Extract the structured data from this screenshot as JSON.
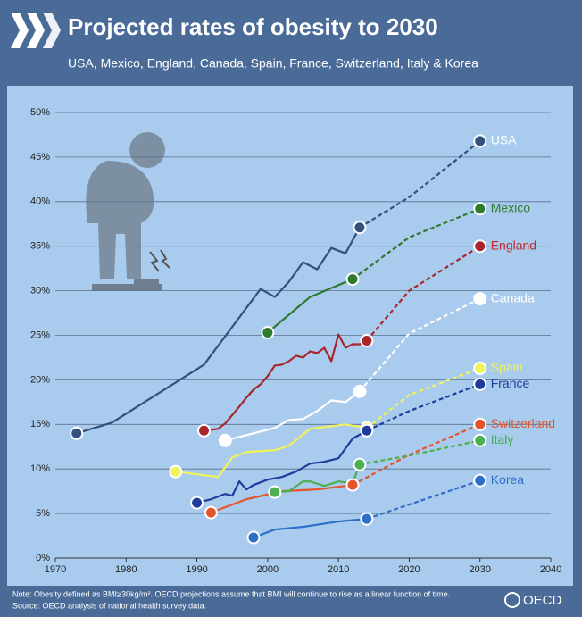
{
  "chart_data": {
    "type": "line",
    "title": "Projected rates of obesity to 2030",
    "subtitle": "USA, Mexico, England, Canada, Spain, France, Switzerland, Italy & Korea",
    "note": "Note: Obesity defined as BMI≥30kg/m². OECD projections assume that BMI will continue to rise as a linear function of time.",
    "source": "Source: OECD analysis of national health survey data.",
    "logo": "OECD",
    "xlim": [
      1970,
      2040
    ],
    "xticks": [
      1970,
      1980,
      1990,
      2000,
      2010,
      2020,
      2030,
      2040
    ],
    "ylim": [
      0,
      50
    ],
    "yticks": [
      {
        "value": 0,
        "label": "0%"
      },
      {
        "value": 5,
        "label": "5%"
      },
      {
        "value": 10,
        "label": "10%"
      },
      {
        "value": 15,
        "label": "15%"
      },
      {
        "value": 20,
        "label": "20%"
      },
      {
        "value": 25,
        "label": "25%"
      },
      {
        "value": 30,
        "label": "30%"
      },
      {
        "value": 35,
        "label": "35%"
      },
      {
        "value": 40,
        "label": "40%"
      },
      {
        "value": 45,
        "label": "45%"
      },
      {
        "value": 50,
        "label": "50%"
      }
    ],
    "grid": true,
    "series": [
      {
        "name": "USA",
        "color": "#34507e",
        "label_color": "#ffffff",
        "x": [
          1973,
          1978,
          1991,
          1999,
          2001,
          2003,
          2005,
          2007,
          2009,
          2011,
          2013
        ],
        "values": [
          14,
          15.2,
          21.7,
          30.2,
          29.3,
          31,
          33.2,
          32.4,
          34.8,
          34.2,
          37.1
        ],
        "projection_x": [
          2013,
          2020,
          2030
        ],
        "projection_values": [
          37.1,
          40.5,
          46.8
        ]
      },
      {
        "name": "Mexico",
        "color": "#2e7a2e",
        "label_color": "#2e7a2e",
        "x": [
          2000,
          2006,
          2012
        ],
        "values": [
          25.3,
          29.3,
          31.3
        ],
        "projection_x": [
          2012,
          2020,
          2030
        ],
        "projection_values": [
          31.3,
          36,
          39.2
        ]
      },
      {
        "name": "England",
        "color": "#a8262a",
        "label_color": "#c0282d",
        "x": [
          1991,
          1993,
          1994,
          1996,
          1997,
          1998,
          1999,
          2000,
          2001,
          2002,
          2003,
          2004,
          2005,
          2006,
          2007,
          2008,
          2009,
          2010,
          2011,
          2012,
          2013,
          2014
        ],
        "values": [
          14.3,
          14.5,
          15.1,
          17,
          18,
          18.9,
          19.5,
          20.4,
          21.6,
          21.7,
          22.1,
          22.7,
          22.5,
          23.2,
          23,
          23.6,
          22.1,
          25.1,
          23.6,
          24,
          24,
          24.4
        ],
        "projection_x": [
          2014,
          2020,
          2030
        ],
        "projection_values": [
          24.4,
          30,
          35
        ]
      },
      {
        "name": "Canada",
        "color": "#ffffff",
        "label_color": "#ffffff",
        "x": [
          1994,
          2001,
          2003,
          2005,
          2007,
          2009,
          2011,
          2013
        ],
        "values": [
          13.2,
          14.6,
          15.5,
          15.6,
          16.5,
          17.7,
          17.5,
          18.7
        ],
        "projection_x": [
          2013,
          2020,
          2030
        ],
        "projection_values": [
          18.7,
          25.2,
          29.1
        ]
      },
      {
        "name": "Spain",
        "color": "#f2f25a",
        "label_color": "#f2f25a",
        "x": [
          1987,
          1993,
          1995,
          1997,
          2001,
          2003,
          2006,
          2009,
          2011,
          2014
        ],
        "values": [
          9.7,
          9.1,
          11.3,
          11.9,
          12.1,
          12.6,
          14.5,
          14.8,
          15,
          14.6
        ],
        "projection_x": [
          2014,
          2020,
          2030
        ],
        "projection_values": [
          14.6,
          18.3,
          21.3
        ]
      },
      {
        "name": "France",
        "color": "#1f3c9c",
        "label_color": "#1f3c9c",
        "x": [
          1990,
          1992,
          1993,
          1994,
          1995,
          1996,
          1997,
          1998,
          2000,
          2002,
          2004,
          2006,
          2008,
          2010,
          2012,
          2014
        ],
        "values": [
          6.2,
          6.6,
          6.9,
          7.2,
          7,
          8.6,
          7.7,
          8.2,
          8.8,
          9.1,
          9.7,
          10.6,
          10.8,
          11.2,
          13.4,
          14.3
        ],
        "projection_x": [
          2014,
          2020,
          2030
        ],
        "projection_values": [
          14.3,
          16.5,
          19.5
        ]
      },
      {
        "name": "Switzerland",
        "color": "#e4552d",
        "label_color": "#e4552d",
        "x": [
          1992,
          1997,
          2002,
          2007,
          2012
        ],
        "values": [
          5.1,
          6.6,
          7.5,
          7.7,
          8.2
        ],
        "projection_x": [
          2012,
          2020,
          2030
        ],
        "projection_values": [
          8.2,
          11.6,
          15
        ]
      },
      {
        "name": "Italy",
        "color": "#4caf50",
        "label_color": "#3fae45",
        "x": [
          2001,
          2003,
          2005,
          2006,
          2008,
          2010,
          2012,
          2013
        ],
        "values": [
          7.4,
          7.5,
          8.6,
          8.6,
          8.1,
          8.6,
          8.4,
          10.5
        ],
        "projection_x": [
          2013,
          2020,
          2030
        ],
        "projection_values": [
          10.5,
          11.5,
          13.2
        ]
      },
      {
        "name": "Korea",
        "color": "#2e6fc8",
        "label_color": "#2e6fc8",
        "x": [
          1998,
          2001,
          2005,
          2010,
          2014
        ],
        "values": [
          2.3,
          3.2,
          3.5,
          4.1,
          4.4
        ],
        "projection_x": [
          2014,
          2020,
          2030
        ],
        "projection_values": [
          4.4,
          6,
          8.7
        ]
      }
    ]
  }
}
